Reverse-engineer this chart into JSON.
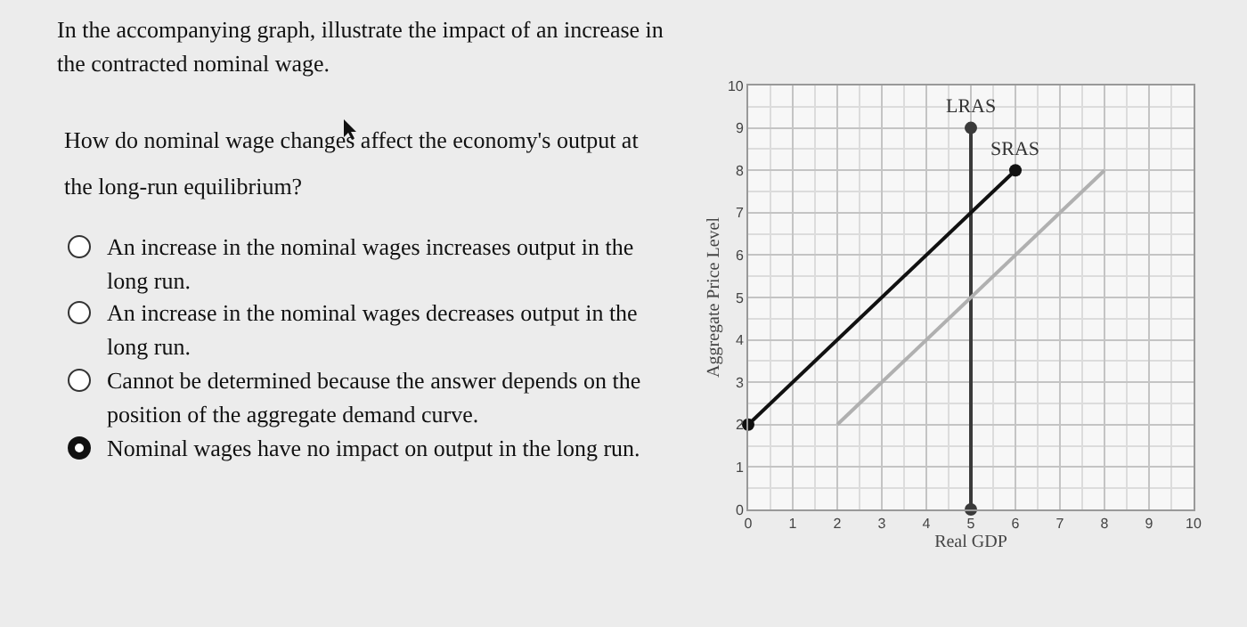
{
  "chart_data": {
    "type": "line",
    "title": "In the accompanying graph, illustrate the impact of an increase in the contracted nominal wage.",
    "subtitle": "How do nominal wage changes affect the economy's output at the long-run equilibrium?",
    "annotations": [
      "An increase in the nominal wages increases output in the long run.",
      "An increase in the nominal wages decreases output in the long run.",
      "Cannot be determined because the answer depends on the position of the aggregate demand curve.",
      "Nominal wages have no impact on output in the long run."
    ],
    "xlabel": "Real GDP",
    "ylabel": "Aggregate Price Level",
    "series": [
      {
        "name": "LRAS",
        "color": "#3a3a3a",
        "x": [
          5,
          5
        ],
        "values": [
          0,
          9
        ],
        "marker": "circle"
      },
      {
        "name": "SRAS",
        "color": "#111111",
        "x": [
          0,
          6
        ],
        "values": [
          2,
          8
        ],
        "marker": "circle"
      },
      {
        "color": "#b0b0b0",
        "x": [
          2,
          8
        ],
        "values": [
          2,
          8
        ],
        "marker": "none"
      }
    ],
    "xlim": [
      0,
      10
    ],
    "xticks": [
      0,
      1,
      2,
      3,
      4,
      5,
      6,
      7,
      8,
      9,
      10
    ],
    "ylim": [
      0,
      10
    ],
    "yticks": [
      0,
      1,
      2,
      3,
      4,
      5,
      6,
      7,
      8,
      9,
      10
    ],
    "grid": true,
    "legend": false
  }
}
